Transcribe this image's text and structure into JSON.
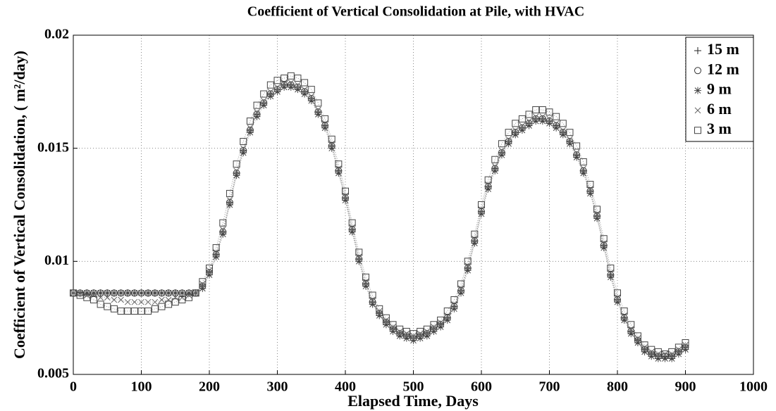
{
  "chart_data": {
    "type": "line",
    "title": "Coefficient of Vertical Consolidation at Pile, with HVAC",
    "xlabel": "Elapsed Time, Days",
    "ylabel": "Coefficient of Vertical Consolidation, ( m²/day)",
    "xlim": [
      0,
      1000
    ],
    "xticks": [
      0,
      100,
      200,
      300,
      400,
      500,
      600,
      700,
      800,
      900,
      1000
    ],
    "ylim": [
      0.005,
      0.02
    ],
    "yticks": [
      0.005,
      0.01,
      0.015,
      0.02
    ],
    "grid": true,
    "legend": "upper right",
    "x": [
      0,
      10,
      20,
      30,
      40,
      50,
      60,
      70,
      80,
      90,
      100,
      110,
      120,
      130,
      140,
      150,
      160,
      170,
      180,
      190,
      200,
      210,
      220,
      230,
      240,
      250,
      260,
      270,
      280,
      290,
      300,
      310,
      320,
      330,
      340,
      350,
      360,
      370,
      380,
      390,
      400,
      410,
      420,
      430,
      440,
      450,
      460,
      470,
      480,
      490,
      500,
      510,
      520,
      530,
      540,
      550,
      560,
      570,
      580,
      590,
      600,
      610,
      620,
      630,
      640,
      650,
      660,
      670,
      680,
      690,
      700,
      710,
      720,
      730,
      740,
      750,
      760,
      770,
      780,
      790,
      800,
      810,
      820,
      830,
      840,
      850,
      860,
      870,
      880,
      890,
      900
    ],
    "series": [
      {
        "name": "15 m",
        "marker": "plus",
        "color": "#222222",
        "values": [
          0.0086,
          0.0086,
          0.0086,
          0.0086,
          0.0086,
          0.0086,
          0.0086,
          0.0086,
          0.0086,
          0.0086,
          0.0086,
          0.0086,
          0.0086,
          0.0086,
          0.0086,
          0.0086,
          0.0086,
          0.0086,
          0.0086,
          0.0089,
          0.0095,
          0.0103,
          0.0113,
          0.0126,
          0.0139,
          0.0149,
          0.0158,
          0.0165,
          0.017,
          0.0174,
          0.0176,
          0.0178,
          0.0178,
          0.0177,
          0.0175,
          0.0172,
          0.0166,
          0.016,
          0.0151,
          0.014,
          0.0128,
          0.0114,
          0.0101,
          0.009,
          0.0082,
          0.0077,
          0.0073,
          0.007,
          0.0068,
          0.0067,
          0.0066,
          0.0067,
          0.0068,
          0.007,
          0.0072,
          0.0075,
          0.008,
          0.0087,
          0.0097,
          0.0109,
          0.0122,
          0.0133,
          0.0141,
          0.0148,
          0.0153,
          0.0157,
          0.0159,
          0.0161,
          0.0163,
          0.0163,
          0.0162,
          0.016,
          0.0157,
          0.0153,
          0.0147,
          0.014,
          0.0131,
          0.012,
          0.0107,
          0.0094,
          0.0083,
          0.0075,
          0.0069,
          0.0065,
          0.0061,
          0.0059,
          0.0058,
          0.0058,
          0.0058,
          0.006,
          0.0062
        ]
      },
      {
        "name": "12 m",
        "marker": "circle",
        "color": "#333333",
        "values": [
          0.0086,
          0.0086,
          0.0086,
          0.0086,
          0.0086,
          0.0086,
          0.0086,
          0.0086,
          0.0086,
          0.0086,
          0.0086,
          0.0086,
          0.0086,
          0.0086,
          0.0086,
          0.0086,
          0.0086,
          0.0086,
          0.0086,
          0.0089,
          0.0095,
          0.0103,
          0.0113,
          0.0126,
          0.0139,
          0.0149,
          0.0158,
          0.0165,
          0.017,
          0.0174,
          0.0176,
          0.0178,
          0.0178,
          0.0177,
          0.0175,
          0.0172,
          0.0166,
          0.016,
          0.0151,
          0.014,
          0.0128,
          0.0114,
          0.0101,
          0.009,
          0.0082,
          0.0077,
          0.0073,
          0.007,
          0.0068,
          0.0067,
          0.0066,
          0.0067,
          0.0068,
          0.007,
          0.0072,
          0.0075,
          0.008,
          0.0087,
          0.0097,
          0.0109,
          0.0122,
          0.0133,
          0.0141,
          0.0148,
          0.0153,
          0.0157,
          0.0159,
          0.0161,
          0.0163,
          0.0163,
          0.0162,
          0.016,
          0.0157,
          0.0153,
          0.0147,
          0.014,
          0.0131,
          0.012,
          0.0107,
          0.0094,
          0.0083,
          0.0075,
          0.0069,
          0.0065,
          0.0061,
          0.0059,
          0.0058,
          0.0058,
          0.0058,
          0.006,
          0.0062
        ]
      },
      {
        "name": "9 m",
        "marker": "star",
        "color": "#444444",
        "values": [
          0.0086,
          0.0086,
          0.0086,
          0.0086,
          0.0086,
          0.0086,
          0.0086,
          0.0086,
          0.0086,
          0.0086,
          0.0086,
          0.0086,
          0.0086,
          0.0086,
          0.0086,
          0.0086,
          0.0086,
          0.0086,
          0.0086,
          0.0088,
          0.0094,
          0.0102,
          0.0112,
          0.0125,
          0.0138,
          0.0148,
          0.0157,
          0.0164,
          0.0169,
          0.0173,
          0.0175,
          0.0177,
          0.0177,
          0.0176,
          0.0174,
          0.0171,
          0.0165,
          0.0159,
          0.015,
          0.0139,
          0.0127,
          0.0113,
          0.01,
          0.0089,
          0.0081,
          0.0076,
          0.0072,
          0.0069,
          0.0067,
          0.0066,
          0.0065,
          0.0066,
          0.0067,
          0.0069,
          0.0071,
          0.0074,
          0.0079,
          0.0086,
          0.0096,
          0.0108,
          0.0121,
          0.0132,
          0.014,
          0.0147,
          0.0152,
          0.0156,
          0.0158,
          0.016,
          0.0162,
          0.0162,
          0.0161,
          0.0159,
          0.0156,
          0.0152,
          0.0146,
          0.0139,
          0.013,
          0.0119,
          0.0106,
          0.0093,
          0.0082,
          0.0074,
          0.0068,
          0.0064,
          0.006,
          0.0058,
          0.0057,
          0.0057,
          0.0057,
          0.0059,
          0.0061
        ]
      },
      {
        "name": "6 m",
        "marker": "cross",
        "color": "#666666",
        "values": [
          0.0086,
          0.0086,
          0.0085,
          0.0085,
          0.0084,
          0.0084,
          0.0083,
          0.0083,
          0.0082,
          0.0082,
          0.0082,
          0.0082,
          0.0082,
          0.0083,
          0.0083,
          0.0084,
          0.0084,
          0.0085,
          0.0086,
          0.009,
          0.0096,
          0.0104,
          0.0114,
          0.0127,
          0.014,
          0.015,
          0.0159,
          0.0166,
          0.0171,
          0.0175,
          0.0177,
          0.0179,
          0.0179,
          0.0178,
          0.0176,
          0.0173,
          0.0167,
          0.0161,
          0.0152,
          0.0141,
          0.0129,
          0.0115,
          0.0102,
          0.0091,
          0.0083,
          0.0078,
          0.0074,
          0.0071,
          0.0069,
          0.0068,
          0.0067,
          0.0068,
          0.0069,
          0.0071,
          0.0073,
          0.0076,
          0.0081,
          0.0088,
          0.0098,
          0.011,
          0.0123,
          0.0134,
          0.0142,
          0.0149,
          0.0154,
          0.0158,
          0.016,
          0.0162,
          0.0164,
          0.0164,
          0.0163,
          0.0161,
          0.0158,
          0.0154,
          0.0148,
          0.0141,
          0.0132,
          0.0121,
          0.0108,
          0.0095,
          0.0084,
          0.0076,
          0.007,
          0.0066,
          0.0062,
          0.006,
          0.0059,
          0.0059,
          0.0059,
          0.0061,
          0.0063
        ]
      },
      {
        "name": "3 m",
        "marker": "square",
        "color": "#444444",
        "values": [
          0.0086,
          0.0085,
          0.0084,
          0.0083,
          0.0081,
          0.008,
          0.0079,
          0.0078,
          0.0078,
          0.0078,
          0.0078,
          0.0078,
          0.0079,
          0.008,
          0.0081,
          0.0082,
          0.0083,
          0.0084,
          0.0086,
          0.0091,
          0.0097,
          0.0106,
          0.0117,
          0.013,
          0.0143,
          0.0153,
          0.0162,
          0.0169,
          0.0174,
          0.0178,
          0.018,
          0.0181,
          0.0182,
          0.0181,
          0.0179,
          0.0176,
          0.017,
          0.0163,
          0.0154,
          0.0143,
          0.0131,
          0.0117,
          0.0104,
          0.0093,
          0.0085,
          0.0079,
          0.0075,
          0.0072,
          0.007,
          0.0069,
          0.0068,
          0.0069,
          0.007,
          0.0072,
          0.0074,
          0.0078,
          0.0083,
          0.009,
          0.01,
          0.0112,
          0.0125,
          0.0136,
          0.0145,
          0.0152,
          0.0157,
          0.0161,
          0.0163,
          0.0165,
          0.0167,
          0.0167,
          0.0166,
          0.0164,
          0.0161,
          0.0157,
          0.0151,
          0.0144,
          0.0134,
          0.0123,
          0.011,
          0.0097,
          0.0086,
          0.0078,
          0.0072,
          0.0067,
          0.0063,
          0.0061,
          0.006,
          0.0059,
          0.006,
          0.0062,
          0.0064
        ]
      }
    ]
  }
}
